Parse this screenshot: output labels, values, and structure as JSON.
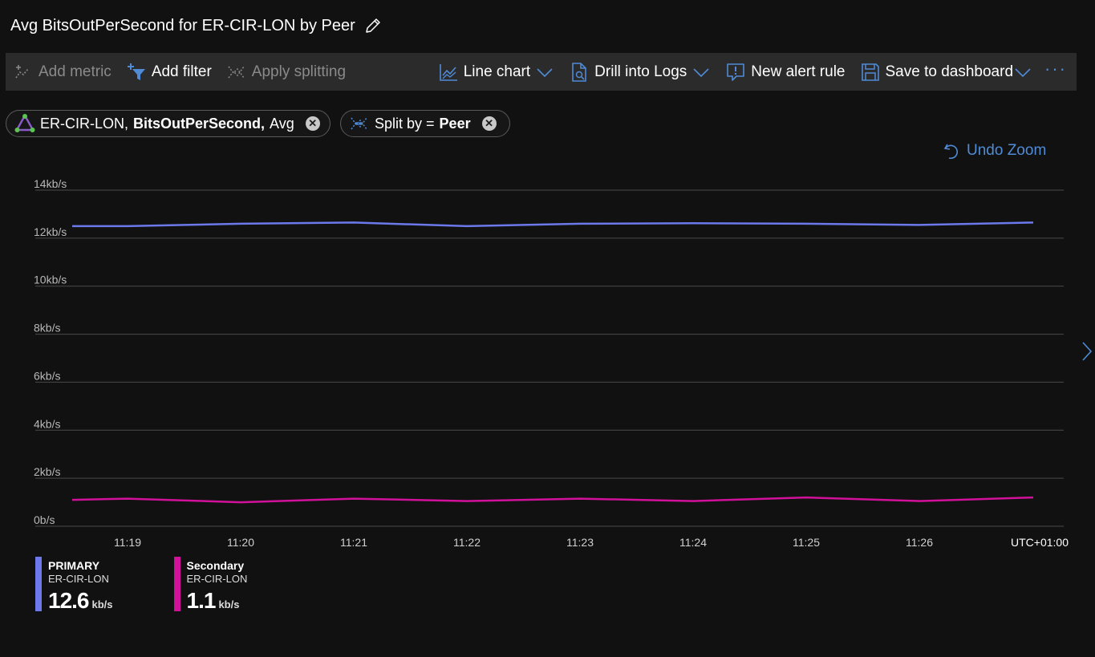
{
  "title": "Avg BitsOutPerSecond for ER-CIR-LON by Peer",
  "toolbar": {
    "add_metric": "Add metric",
    "add_filter": "Add filter",
    "apply_splitting": "Apply splitting",
    "chart_type": "Line chart",
    "drill_logs": "Drill into Logs",
    "new_alert": "New alert rule",
    "save_dashboard": "Save to dashboard",
    "more": "···"
  },
  "pills": {
    "metric": {
      "resource": "ER-CIR-LON,",
      "metric": "BitsOutPerSecond,",
      "aggregation": "Avg"
    },
    "split": {
      "prefix": "Split by =",
      "value": "Peer"
    }
  },
  "undo_zoom": "Undo Zoom",
  "colors": {
    "primary": "#6b79ea",
    "secondary": "#d1119a",
    "accent": "#4f8bd6",
    "grid": "#4a4a4a"
  },
  "chart_data": {
    "type": "line",
    "y_tick_labels": [
      "0b/s",
      "2kb/s",
      "4kb/s",
      "6kb/s",
      "8kb/s",
      "10kb/s",
      "12kb/s",
      "14kb/s"
    ],
    "y_ticks": [
      0,
      2,
      4,
      6,
      8,
      10,
      12,
      14
    ],
    "ylim": [
      0,
      14
    ],
    "x_tick_labels": [
      "11:19",
      "11:20",
      "11:21",
      "11:22",
      "11:23",
      "11:24",
      "11:25",
      "11:26"
    ],
    "timezone_label": "UTC+01:00",
    "x_points": [
      "11:18.75",
      "11:19",
      "11:20",
      "11:21",
      "11:22",
      "11:23",
      "11:24",
      "11:25",
      "11:26",
      "11:27"
    ],
    "x_values": [
      -0.5,
      0,
      1,
      2,
      3,
      4,
      5,
      6,
      7,
      8
    ],
    "series": [
      {
        "name": "PRIMARY",
        "values": [
          12.5,
          12.5,
          12.6,
          12.65,
          12.5,
          12.6,
          12.62,
          12.6,
          12.55,
          12.65
        ]
      },
      {
        "name": "Secondary",
        "values": [
          1.1,
          1.15,
          1.0,
          1.15,
          1.05,
          1.15,
          1.05,
          1.2,
          1.05,
          1.2
        ]
      }
    ],
    "grid": true,
    "legend": "bottom-left"
  },
  "legend": [
    {
      "name": "PRIMARY",
      "resource": "ER-CIR-LON",
      "value": "12.6",
      "unit": "kb/s"
    },
    {
      "name": "Secondary",
      "resource": "ER-CIR-LON",
      "value": "1.1",
      "unit": "kb/s"
    }
  ]
}
